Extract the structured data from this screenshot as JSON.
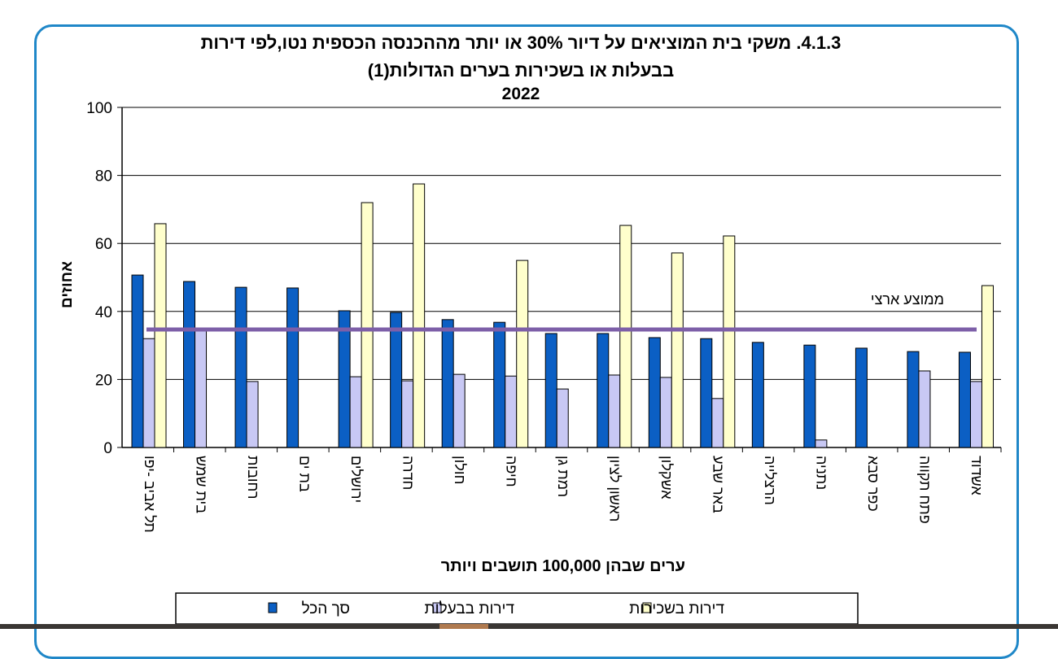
{
  "chart_data": {
    "type": "bar",
    "title": "4.1.3. משקי בית המוציאים על דיור 30% או יותר מההכנסה הכספית נטו,לפי דירות",
    "subtitle": "בבעלות או בשכירות בערים הגדולות(1)",
    "year": "2022",
    "xlabel": "ערים שבהן 100,000 תושבים ויותר",
    "ylabel": "אחוזים",
    "ylim": [
      0,
      100
    ],
    "yticks": [
      "0",
      "20",
      "40",
      "60",
      "80",
      "100"
    ],
    "grid": true,
    "legend_placement": "bottom",
    "categories": [
      "תל אביב -יפו",
      "בית שמש",
      "רחובות",
      "בת ים",
      "ירושלים",
      "חדרה",
      "חולון",
      "חיפה",
      "רמת גן",
      "ראשון לציון",
      "אשקלון",
      "באר שבע",
      "הרצלייה",
      "נתניה",
      "כפר סבא",
      "פתח תקווה",
      "אשדוד"
    ],
    "series": [
      {
        "name": "סך הכל",
        "color": "#0b5fc4",
        "values": [
          50.7,
          48.8,
          47.1,
          46.9,
          40.2,
          39.7,
          37.6,
          36.8,
          33.5,
          33.5,
          32.3,
          32.0,
          30.9,
          30.1,
          29.2,
          28.2,
          28.0
        ]
      },
      {
        "name": "דירות בבעלות",
        "color": "#c8c8f4",
        "values": [
          32.0,
          34.4,
          19.4,
          null,
          20.8,
          19.6,
          21.5,
          21.0,
          17.2,
          21.3,
          20.6,
          14.4,
          null,
          2.2,
          null,
          22.5,
          19.4
        ]
      },
      {
        "name": "דירות בשכירות",
        "color": "#ffffcc",
        "values": [
          65.8,
          null,
          null,
          null,
          72.0,
          77.5,
          null,
          55.0,
          null,
          65.3,
          57.2,
          62.2,
          null,
          null,
          null,
          null,
          47.6
        ]
      }
    ],
    "reference_line": {
      "label": "ממוצע ארצי",
      "value": 34.7,
      "color": "#7d5fa8"
    }
  }
}
